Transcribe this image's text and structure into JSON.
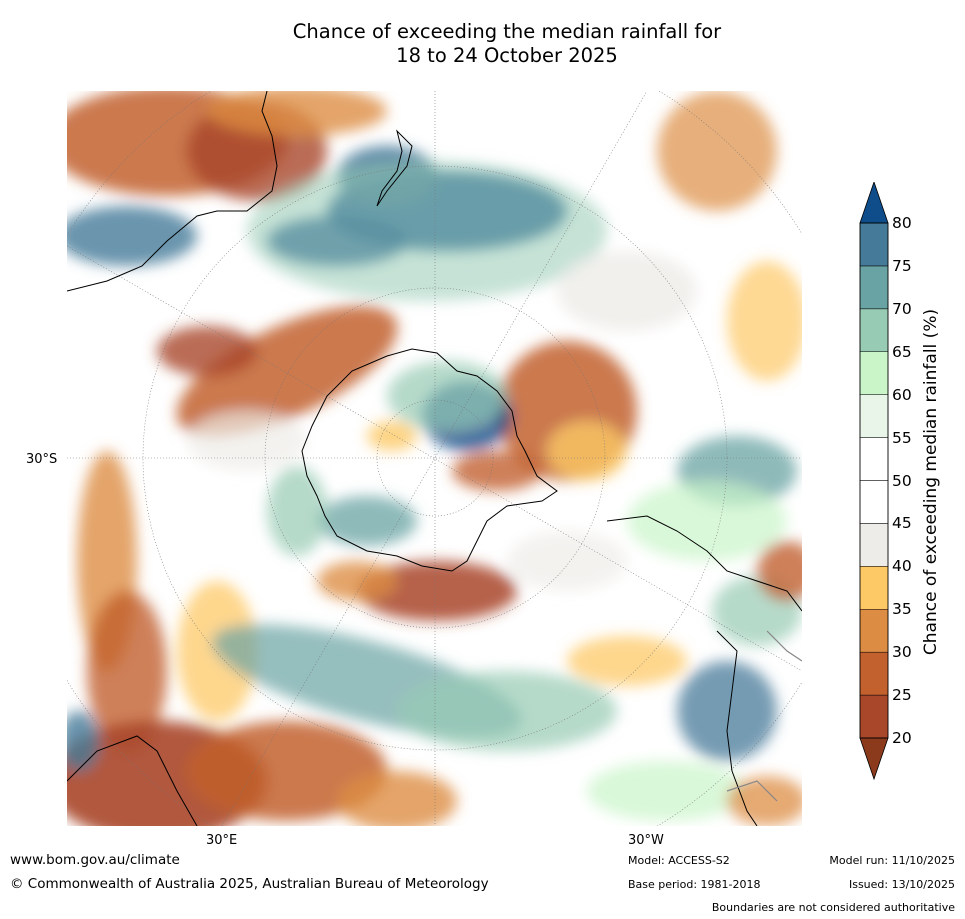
{
  "title_line1": "Chance of exceeding the median rainfall for",
  "title_line2": "18 to 24 October 2025",
  "map": {
    "lat_label": "30°S",
    "lon_labels": {
      "east": "30°E",
      "west": "30°W"
    }
  },
  "colorbar": {
    "label": "Chance of exceeding median rainfall (%)",
    "ticks": [
      "20",
      "25",
      "30",
      "35",
      "40",
      "45",
      "50",
      "55",
      "60",
      "65",
      "70",
      "75",
      "80"
    ],
    "colors": [
      "#8b3a1c",
      "#a9472a",
      "#c2602e",
      "#dd8d43",
      "#fdc967",
      "#eeece8",
      "#ffffff",
      "#ffffff",
      "#eaf5ea",
      "#c9f5c9",
      "#97cbb4",
      "#6aa3a3",
      "#457a99",
      "#0f4c8a"
    ]
  },
  "footer": {
    "website": "www.bom.gov.au/climate",
    "copyright": "© Commonwealth of Australia 2025, Australian Bureau of Meteorology",
    "model": "Model: ACCESS-S2",
    "base_period": "Base period: 1981-2018",
    "model_run": "Model run: 11/10/2025",
    "issued": "Issued: 13/10/2025",
    "disclaimer": "Boundaries are not considered authoritative"
  }
}
